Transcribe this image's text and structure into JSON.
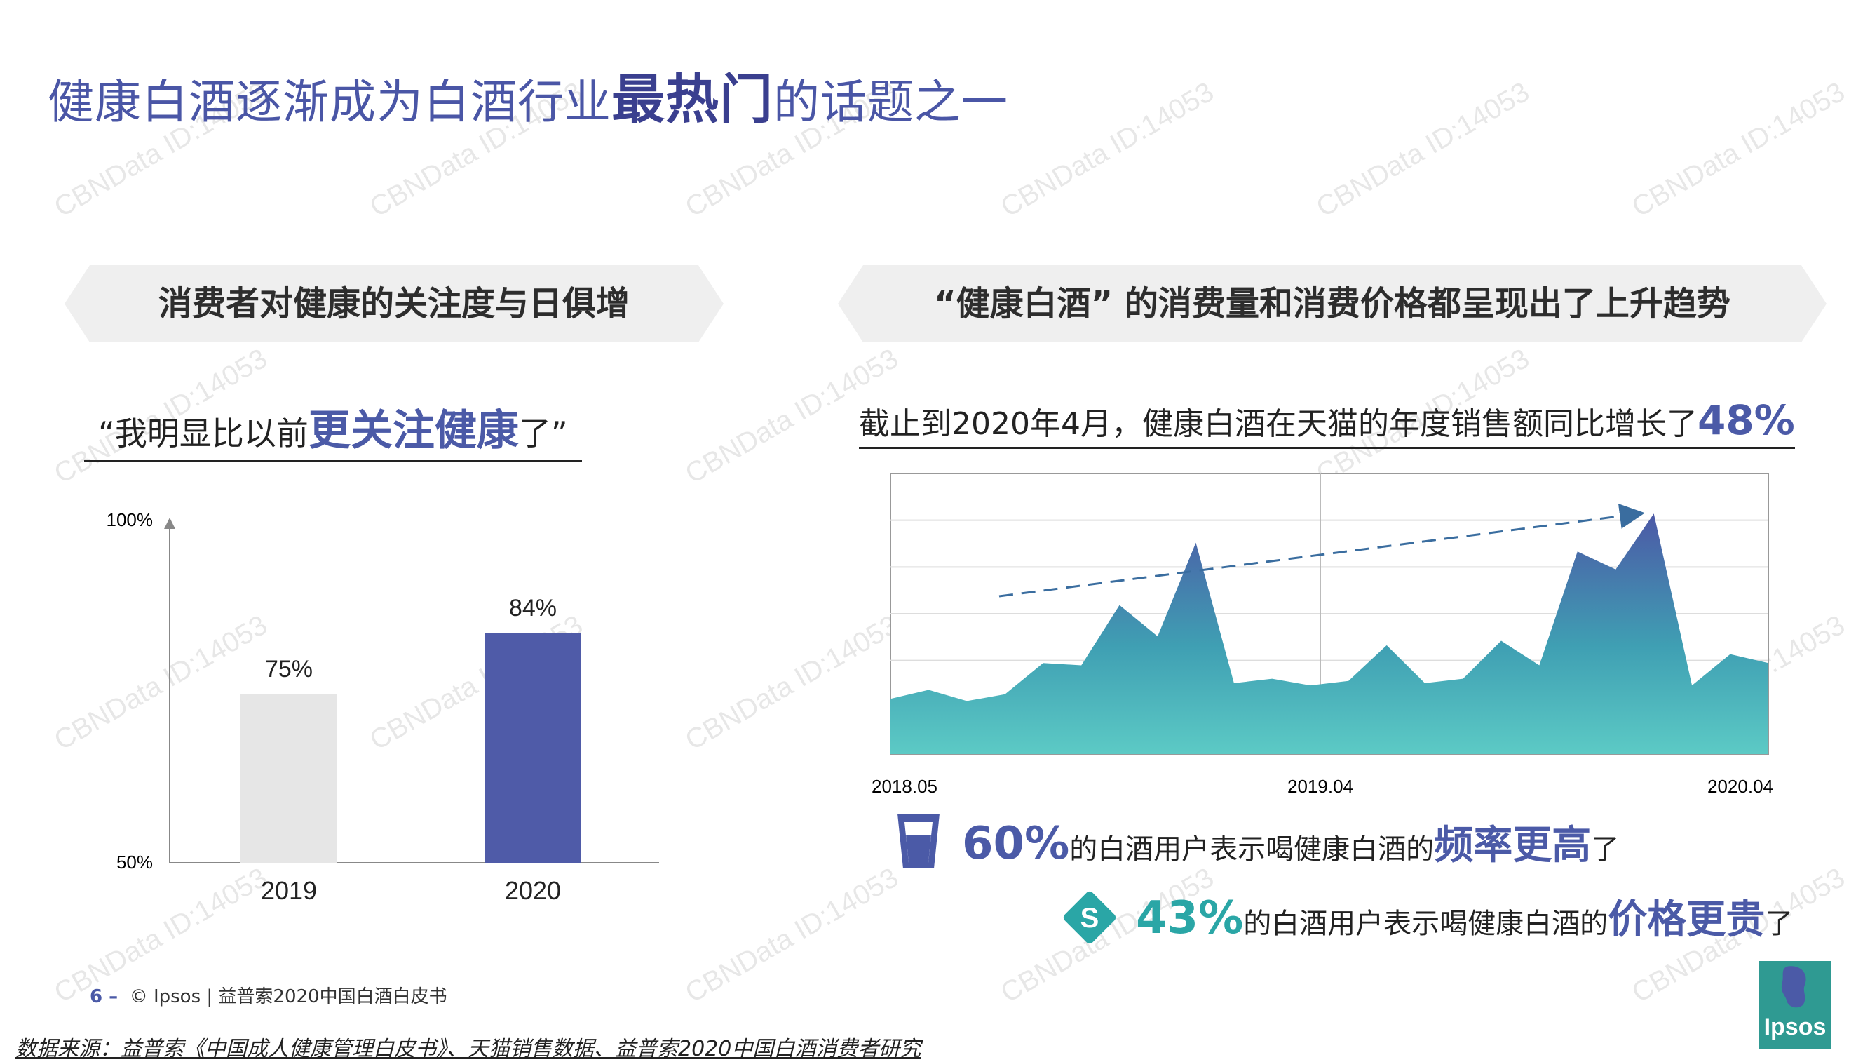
{
  "title": {
    "pre": "健康白酒逐渐成为白酒行业",
    "highlight": "最热门",
    "post": "的话题之一"
  },
  "watermark": "CBNData ID:14053",
  "left_banner": "消费者对健康的关注度与日俱增",
  "right_banner": "“健康白酒” 的消费量和消费价格都呈现出了上升趋势",
  "quote": {
    "pre": "“我明显比以前",
    "highlight": "更关注健康",
    "post": "了”"
  },
  "trend_caption": {
    "pre": "截止到2020年4月，健康白酒在天猫的年度销售额同比增长了",
    "highlight": "48%"
  },
  "stat1": {
    "pct": "60%",
    "pre": "的白酒用户表示喝健康白酒的",
    "highlight": "频率更高",
    "post": "了"
  },
  "stat2": {
    "pct": "43%",
    "pre": "的白酒用户表示喝健康白酒的",
    "highlight": "价格更贵",
    "post": "了"
  },
  "footer": {
    "page": "6 –",
    "text": "© Ipsos | 益普索2020中国白酒白皮书"
  },
  "source": "数据来源：益普索《中国成人健康管理白皮书》、天猫销售数据、益普索2020中国白酒消费者研究",
  "logo": "Ipsos",
  "colors": {
    "accent": "#4b5aa7",
    "teal": "#2aa6a6",
    "bar_light": "#e6e6e6",
    "bar_dark": "#4f5ba8"
  },
  "chart_data": [
    {
      "type": "bar",
      "categories": [
        "2019",
        "2020"
      ],
      "values": [
        75,
        84
      ],
      "value_labels": [
        "75%",
        "84%"
      ],
      "ylim": [
        50,
        100
      ],
      "ytick_labels": [
        "50%",
        "100%"
      ],
      "xlabel": "",
      "ylabel": ""
    },
    {
      "type": "area",
      "x_tick_labels": [
        "2018.05",
        "2019.04",
        "2020.04"
      ],
      "y_axis": "unlabeled",
      "grid": true,
      "values": [
        10,
        14,
        9,
        12,
        26,
        25,
        52,
        38,
        80,
        17,
        19,
        16,
        18,
        34,
        17,
        19,
        36,
        25,
        76,
        68,
        93,
        16,
        30,
        26
      ],
      "trend_arrow": true
    }
  ]
}
